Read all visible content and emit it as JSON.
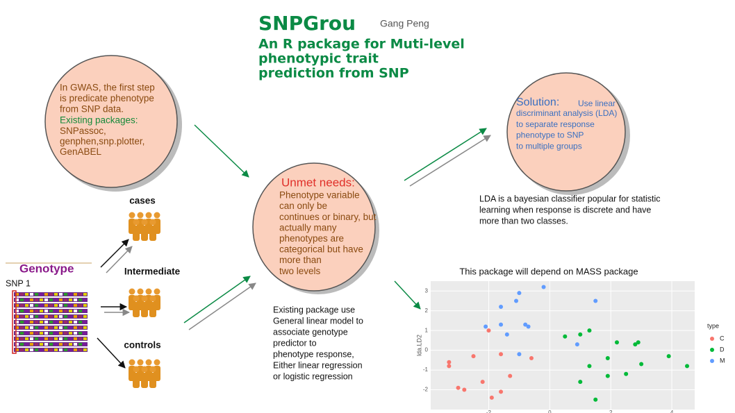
{
  "title": "SNPGrou",
  "author": "Gang Peng",
  "subtitle": [
    "An R package for Muti-level",
    "phenotypic trait",
    "prediction from SNP"
  ],
  "intro": {
    "lines": [
      "In GWAS, the first step",
      "is predicate phenotype",
      "from SNP data."
    ],
    "packages_label": "Existing packages:",
    "packages": [
      "SNPassoc,",
      "genphen,snp.plotter,",
      "  GenABEL"
    ]
  },
  "unmet": {
    "heading": "Unmet needs:",
    "lines": [
      "Phenotype variable",
      " can only be",
      "continues or binary, but",
      "actually many",
      "phenotypes are",
      "categorical but have",
      "more than",
      " two levels"
    ]
  },
  "solution": {
    "heading": "Solution:",
    "lines": [
      "Use linear",
      "discriminant analysis (LDA)",
      "to separate response",
      "phenotype to SNP",
      " to multiple groups"
    ]
  },
  "lda_note": [
    "LDA is a bayesian classifier popular for statistic",
    "learning when response is discrete and   have",
    "more than two classes."
  ],
  "existing": [
    "Existing package use",
    "General linear model to",
    "associate genotype",
    "predictor to",
    "phenotype response,",
    "Either linear regression",
    "or logistic regression"
  ],
  "genotype": {
    "label": "Genotype",
    "snp": "SNP 1",
    "groups": [
      "cases",
      "Intermediate",
      "controls"
    ]
  },
  "scatter_plot": {
    "type": "scatter",
    "title": "This package will depend on MASS package",
    "y_label": "lda.LD2",
    "legend_title": "type",
    "xlim": [
      -3.9,
      4.75
    ],
    "ylim": [
      -3,
      3.5
    ],
    "xticks": [
      -2,
      0,
      2,
      4
    ],
    "yticks": [
      -2,
      -1,
      0,
      1,
      2,
      3
    ],
    "grid": true,
    "series": [
      {
        "name": "C",
        "color": "#f8766d",
        "x": [
          -2.0,
          -3.3,
          -3.3,
          -2.5,
          -1.6,
          -0.6,
          -1.3,
          -2.2,
          -3.0,
          -2.8,
          -1.6,
          -1.9
        ],
        "y": [
          1.0,
          -0.6,
          -0.8,
          -0.3,
          -0.2,
          -0.4,
          -1.3,
          -1.6,
          -1.9,
          -2.0,
          -2.1,
          -2.4
        ]
      },
      {
        "name": "D",
        "color": "#00ba38",
        "x": [
          0.5,
          1.0,
          1.3,
          2.2,
          2.8,
          2.9,
          1.9,
          1.3,
          3.0,
          3.9,
          4.5,
          2.5,
          1.9,
          1.0,
          1.5
        ],
        "y": [
          0.7,
          0.8,
          1.0,
          0.4,
          0.3,
          0.4,
          -0.4,
          -0.8,
          -0.7,
          -0.3,
          -0.8,
          -1.2,
          -1.3,
          -1.6,
          -2.5
        ]
      },
      {
        "name": "M",
        "color": "#619cff",
        "x": [
          -0.2,
          -1.0,
          -1.1,
          -1.6,
          1.5,
          -2.1,
          -1.6,
          -0.8,
          -0.7,
          -1.4,
          0.9,
          -1.0
        ],
        "y": [
          3.2,
          2.9,
          2.5,
          2.2,
          2.5,
          1.2,
          1.3,
          1.3,
          1.2,
          0.8,
          0.3,
          -0.2
        ]
      }
    ]
  }
}
